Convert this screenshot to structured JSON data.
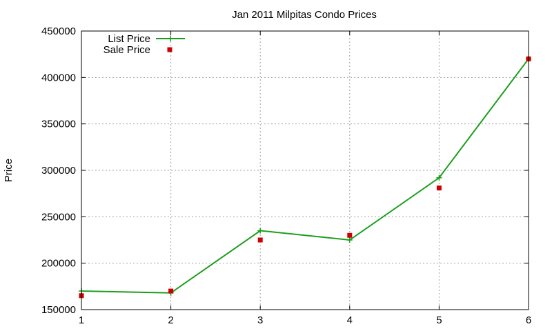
{
  "chart_data": {
    "type": "line",
    "title": "Jan 2011 Milpitas Condo Prices",
    "xlabel": "",
    "ylabel": "Price",
    "x": [
      1,
      2,
      3,
      4,
      5,
      6
    ],
    "xlim": [
      1,
      6
    ],
    "ylim": [
      150000,
      450000
    ],
    "x_ticks": [
      1,
      2,
      3,
      4,
      5,
      6
    ],
    "y_ticks": [
      150000,
      200000,
      250000,
      300000,
      350000,
      400000,
      450000
    ],
    "grid": true,
    "legend_position": "top-left",
    "series": [
      {
        "name": "List Price",
        "style": "line+cross",
        "color": "#1a9e1a",
        "values": [
          170000,
          168000,
          235000,
          225000,
          292000,
          420000
        ]
      },
      {
        "name": "Sale Price",
        "style": "square-markers",
        "color": "#cc0000",
        "values": [
          165000,
          170000,
          225000,
          230000,
          281000,
          420000
        ]
      }
    ]
  }
}
